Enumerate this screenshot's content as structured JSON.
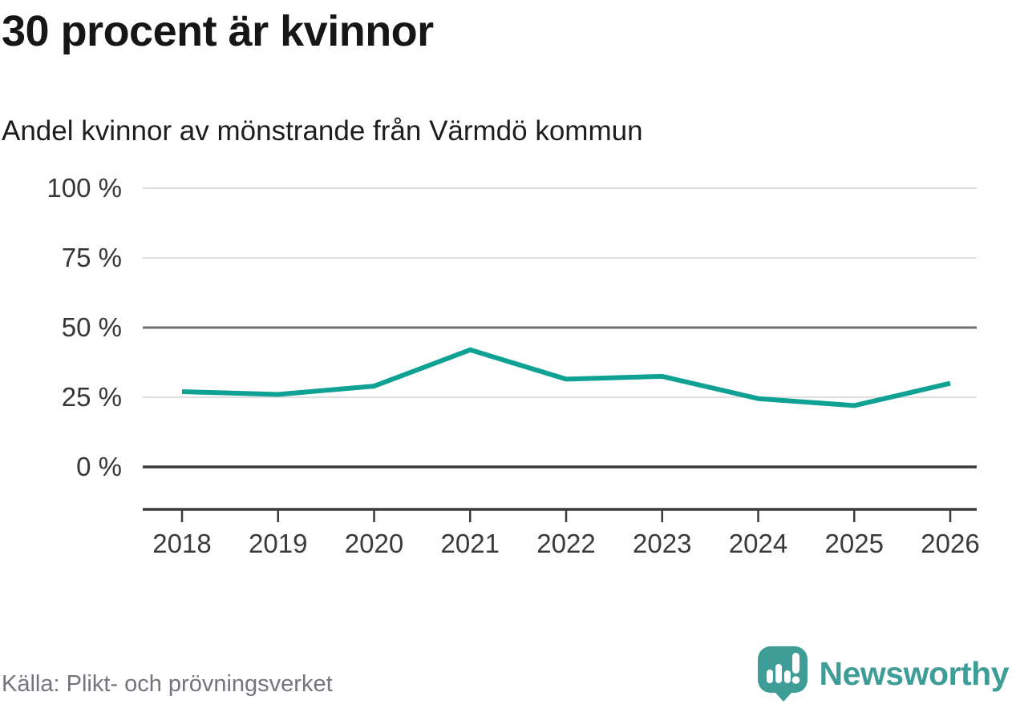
{
  "header": {
    "title": "30 procent är kvinnor",
    "subtitle": "Andel kvinnor av mönstrande från Värmdö kommun"
  },
  "chart_data": {
    "type": "line",
    "title": "30 procent är kvinnor",
    "subtitle": "Andel kvinnor av mönstrande från Värmdö kommun",
    "x": [
      2018,
      2019,
      2020,
      2021,
      2022,
      2023,
      2024,
      2025,
      2026
    ],
    "series": [
      {
        "name": "Andel kvinnor av mönstrande",
        "values": [
          27,
          26,
          29,
          42,
          31.5,
          32.5,
          24.5,
          22,
          30
        ]
      }
    ],
    "unit": "%",
    "ylim": [
      0,
      100
    ],
    "yticks": [
      {
        "value": 100,
        "label": "100 %",
        "emphasis": "light"
      },
      {
        "value": 75,
        "label": "75 %",
        "emphasis": "light"
      },
      {
        "value": 50,
        "label": "50 %",
        "emphasis": "medium"
      },
      {
        "value": 25,
        "label": "25 %",
        "emphasis": "light"
      },
      {
        "value": 0,
        "label": "0 %",
        "emphasis": "strong"
      }
    ],
    "grid": "horizontal",
    "legend": "none",
    "colors": {
      "line": "#0fa194",
      "gridline_light": "#dedede",
      "gridline_medium": "#6e7076",
      "gridline_strong": "#3b3b3b",
      "axis": "#3b3b3b"
    }
  },
  "footer": {
    "source": "Källa: Plikt- och prövningsverket",
    "brand": "Newsworthy",
    "brand_color": "#3f9d98",
    "logo_icon": "speech-bubble-bar-chart-exclamation"
  }
}
